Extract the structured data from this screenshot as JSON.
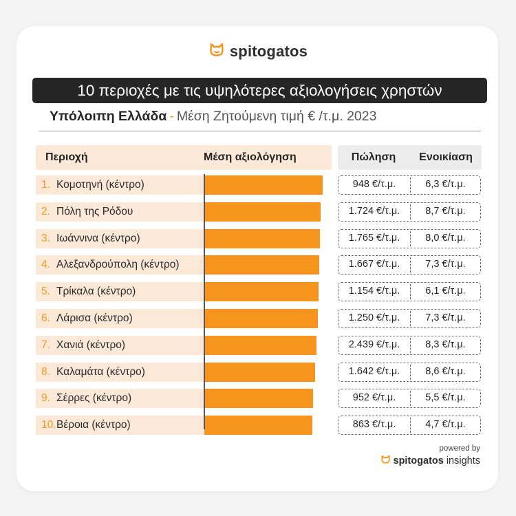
{
  "brand": {
    "name": "spitogatos",
    "icon": "cat-icon",
    "accent": "#f7941d"
  },
  "title": "10 περιοχές με τις υψηλότερες αξιολογήσεις χρηστών",
  "subtitle": {
    "region": "Υπόλοιπη Ελλάδα",
    "dash": "-",
    "metric": "Μέση Ζητούμενη τιμή € /τ.μ. 2023"
  },
  "headers": {
    "region": "Περιοχή",
    "rating": "Μέση αξιολόγηση",
    "sale": "Πώληση",
    "rent": "Ενοικίαση"
  },
  "footer": {
    "powered": "powered by",
    "brand_bold": "spitogatos",
    "brand_light": "insights"
  },
  "chart_data": {
    "type": "bar",
    "orientation": "horizontal",
    "categories": [
      "Κομοτηνή (κέντρο)",
      "Πόλη της Ρόδου",
      "Ιωάννινα (κέντρο)",
      "Αλεξανδρούπολη (κέντρο)",
      "Τρίκαλα (κέντρο)",
      "Λάρισα (κέντρο)",
      "Χανιά (κέντρο)",
      "Καλαμάτα (κέντρο)",
      "Σέρρες (κέντρο)",
      "Βέροια (κέντρο)"
    ],
    "values": [
      1.0,
      0.985,
      0.975,
      0.97,
      0.965,
      0.96,
      0.945,
      0.935,
      0.92,
      0.915
    ],
    "xlim": [
      0,
      1
    ],
    "bar_color": "#f7941d",
    "legend": "none",
    "grid": false
  },
  "rows": [
    {
      "rank": "1.",
      "name": "Κομοτηνή (κέντρο)",
      "sale": "948 €/τ.μ.",
      "rent": "6,3 €/τ.μ."
    },
    {
      "rank": "2.",
      "name": "Πόλη της Ρόδου",
      "sale": "1.724 €/τ.μ.",
      "rent": "8,7 €/τ.μ."
    },
    {
      "rank": "3.",
      "name": "Ιωάννινα (κέντρο)",
      "sale": "1.765 €/τ.μ.",
      "rent": "8,0 €/τ.μ."
    },
    {
      "rank": "4.",
      "name": "Αλεξανδρούπολη (κέντρο)",
      "sale": "1.667 €/τ.μ.",
      "rent": "7,3 €/τ.μ."
    },
    {
      "rank": "5.",
      "name": "Τρίκαλα (κέντρο)",
      "sale": "1.154 €/τ.μ.",
      "rent": "6,1 €/τ.μ."
    },
    {
      "rank": "6.",
      "name": "Λάρισα (κέντρο)",
      "sale": "1.250 €/τ.μ.",
      "rent": "7,3 €/τ.μ."
    },
    {
      "rank": "7.",
      "name": "Χανιά (κέντρο)",
      "sale": "2.439 €/τ.μ.",
      "rent": "8,3 €/τ.μ."
    },
    {
      "rank": "8.",
      "name": "Καλαμάτα (κέντρο)",
      "sale": "1.642 €/τ.μ.",
      "rent": "8,6 €/τ.μ."
    },
    {
      "rank": "9.",
      "name": "Σέρρες (κέντρο)",
      "sale": "952 €/τ.μ.",
      "rent": "5,5 €/τ.μ."
    },
    {
      "rank": "10.",
      "name": "Βέροια (κέντρο)",
      "sale": "863 €/τ.μ.",
      "rent": "4,7 €/τ.μ."
    }
  ]
}
